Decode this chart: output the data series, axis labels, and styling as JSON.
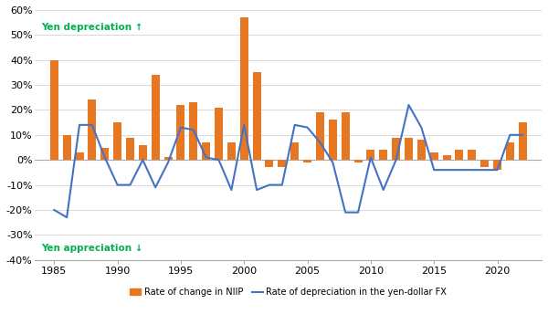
{
  "years": [
    1985,
    1986,
    1987,
    1988,
    1989,
    1990,
    1991,
    1992,
    1993,
    1994,
    1995,
    1996,
    1997,
    1998,
    1999,
    2000,
    2001,
    2002,
    2003,
    2004,
    2005,
    2006,
    2007,
    2008,
    2009,
    2010,
    2011,
    2012,
    2013,
    2014,
    2015,
    2016,
    2017,
    2018,
    2019,
    2020,
    2021,
    2022
  ],
  "niip": [
    0.4,
    0.1,
    0.03,
    0.24,
    0.05,
    0.15,
    0.09,
    0.06,
    0.34,
    0.01,
    0.22,
    0.23,
    0.07,
    0.21,
    0.07,
    0.57,
    0.35,
    -0.03,
    -0.03,
    0.07,
    -0.01,
    0.19,
    0.16,
    0.19,
    -0.01,
    0.04,
    0.04,
    0.09,
    0.09,
    0.08,
    0.03,
    0.02,
    0.04,
    0.04,
    -0.03,
    -0.04,
    0.07,
    0.15
  ],
  "fx_line": [
    -0.2,
    -0.23,
    0.14,
    0.14,
    0.01,
    -0.1,
    -0.1,
    0.0,
    -0.11,
    -0.01,
    0.13,
    0.12,
    0.01,
    0.0,
    -0.12,
    0.14,
    -0.12,
    -0.1,
    -0.1,
    0.14,
    0.13,
    0.07,
    -0.01,
    -0.21,
    -0.21,
    0.01,
    -0.12,
    0.0,
    0.22,
    0.13,
    -0.04,
    -0.04,
    -0.04,
    -0.04,
    -0.04,
    -0.04,
    0.1,
    0.1
  ],
  "bar_color": "#E87722",
  "line_color": "#4472C4",
  "annotation_color": "#00B050",
  "ylim": [
    -0.4,
    0.6
  ],
  "yticks": [
    -0.4,
    -0.3,
    -0.2,
    -0.1,
    0.0,
    0.1,
    0.2,
    0.3,
    0.4,
    0.5,
    0.6
  ],
  "xticks": [
    1985,
    1990,
    1995,
    2000,
    2005,
    2010,
    2015,
    2020
  ],
  "annotation_upper": "Yen depreciation ↑",
  "annotation_lower": "Yen appreciation ↓",
  "legend_bar": "Rate of change in NIIP",
  "legend_line": "Rate of depreciation in the yen-dollar FX",
  "bg_color": "#FFFFFF",
  "grid_color": "#D3D3D3"
}
